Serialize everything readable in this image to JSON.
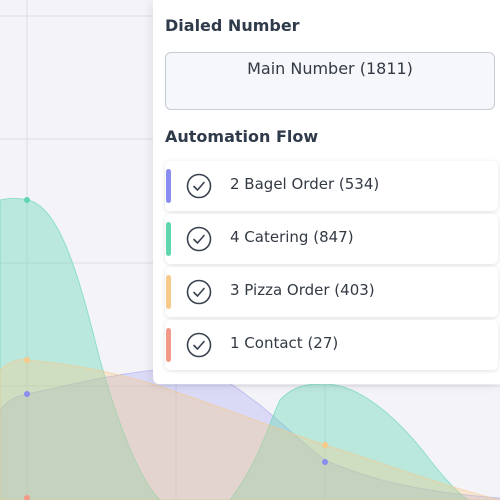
{
  "dialed_number": {
    "title": "Dialed Number",
    "value": "Main Number (1811)"
  },
  "automation_flow": {
    "title": "Automation Flow",
    "items": [
      {
        "label": "2 Bagel Order (534)",
        "color": "#8a8df0",
        "icon": "check-circle-icon"
      },
      {
        "label": "4 Catering (847)",
        "color": "#5fd6b0",
        "icon": "check-circle-icon"
      },
      {
        "label": "3 Pizza Order (403)",
        "color": "#f7c98a",
        "icon": "check-circle-icon"
      },
      {
        "label": "1 Contact (27)",
        "color": "#f29a8a",
        "icon": "check-circle-icon"
      }
    ]
  },
  "background_chart": {
    "colors": {
      "teal": "#5fd6b0",
      "purple": "#8a8df0",
      "orange": "#f7c98a",
      "red": "#f29a8a"
    }
  }
}
